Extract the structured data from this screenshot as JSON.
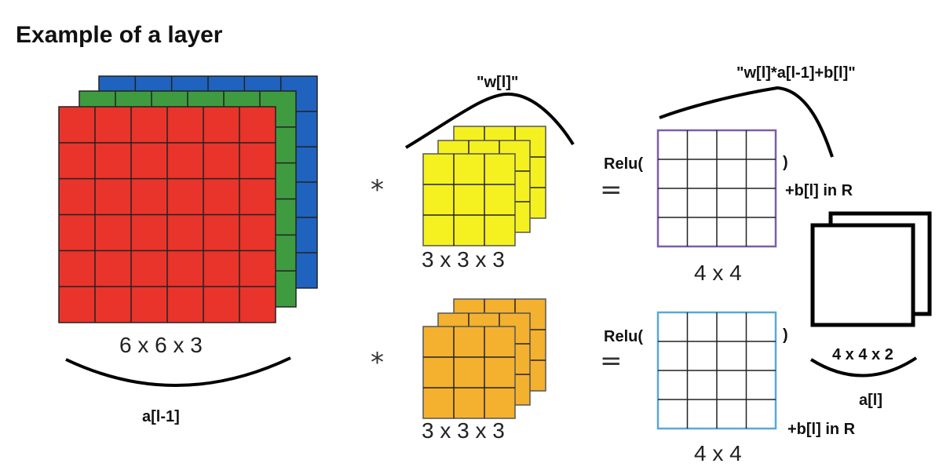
{
  "title": "Example of a layer",
  "input": {
    "dims": "6 x 6 x 3",
    "label": "a[l-1]",
    "channel_colors": [
      "#e8342b",
      "#3f9b3f",
      "#1f63be"
    ]
  },
  "filter_group": {
    "label": "\"w[l]\""
  },
  "filters": [
    {
      "dims": "3 x 3 x 3",
      "color": "#f5f120",
      "operator": "*"
    },
    {
      "dims": "3 x 3 x 3",
      "color": "#f4b12f",
      "operator": "*"
    }
  ],
  "outputs": [
    {
      "relu_open": "Relu(",
      "relu_close": ")",
      "equals": "=",
      "bias": "+b[l] in R",
      "dims": "4 x 4",
      "border_color": "#7b5ea8"
    },
    {
      "relu_open": "Relu(",
      "relu_close": ")",
      "equals": "=",
      "bias": "+b[l] in R",
      "dims": "4 x 4",
      "border_color": "#5aa8d8"
    }
  ],
  "formula": "\"w[l]*a[l-1]+b[l]\"",
  "result": {
    "dims": "4 x 4 x 2",
    "label": "a[l]"
  }
}
